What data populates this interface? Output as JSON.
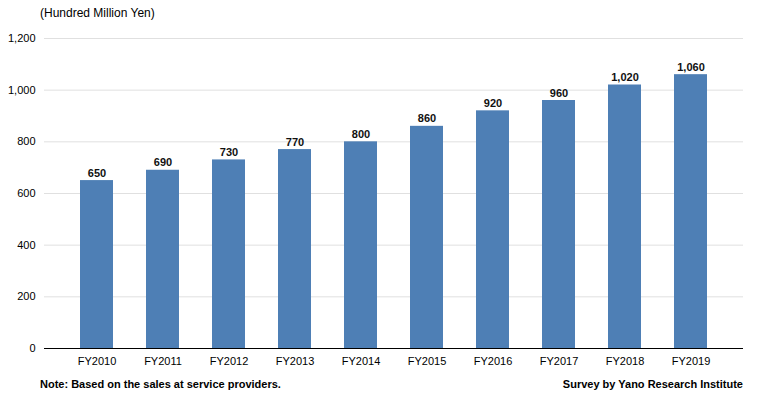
{
  "chart_data": {
    "type": "bar",
    "ylabel": "(Hundred Million Yen)",
    "categories": [
      "FY2010",
      "FY2011",
      "FY2012",
      "FY2013",
      "FY2014",
      "FY2015",
      "FY2016",
      "FY2017",
      "FY2018",
      "FY2019"
    ],
    "values": [
      650,
      690,
      730,
      770,
      800,
      860,
      920,
      960,
      1020,
      1060
    ],
    "value_labels": [
      "650",
      "690",
      "730",
      "770",
      "800",
      "860",
      "920",
      "960",
      "1,020",
      "1,060"
    ],
    "color": "#4e7fb5",
    "ylim": [
      0,
      1200
    ],
    "yticks": [
      0,
      200,
      400,
      600,
      800,
      {
        "value": 1000,
        "label": "1,000"
      },
      {
        "value": 1200,
        "label": "1,200"
      }
    ],
    "grid": true,
    "data_labels": true,
    "annotations": [
      "Note: Based on the sales at service providers.",
      "Survey by Yano Research Institute"
    ]
  }
}
